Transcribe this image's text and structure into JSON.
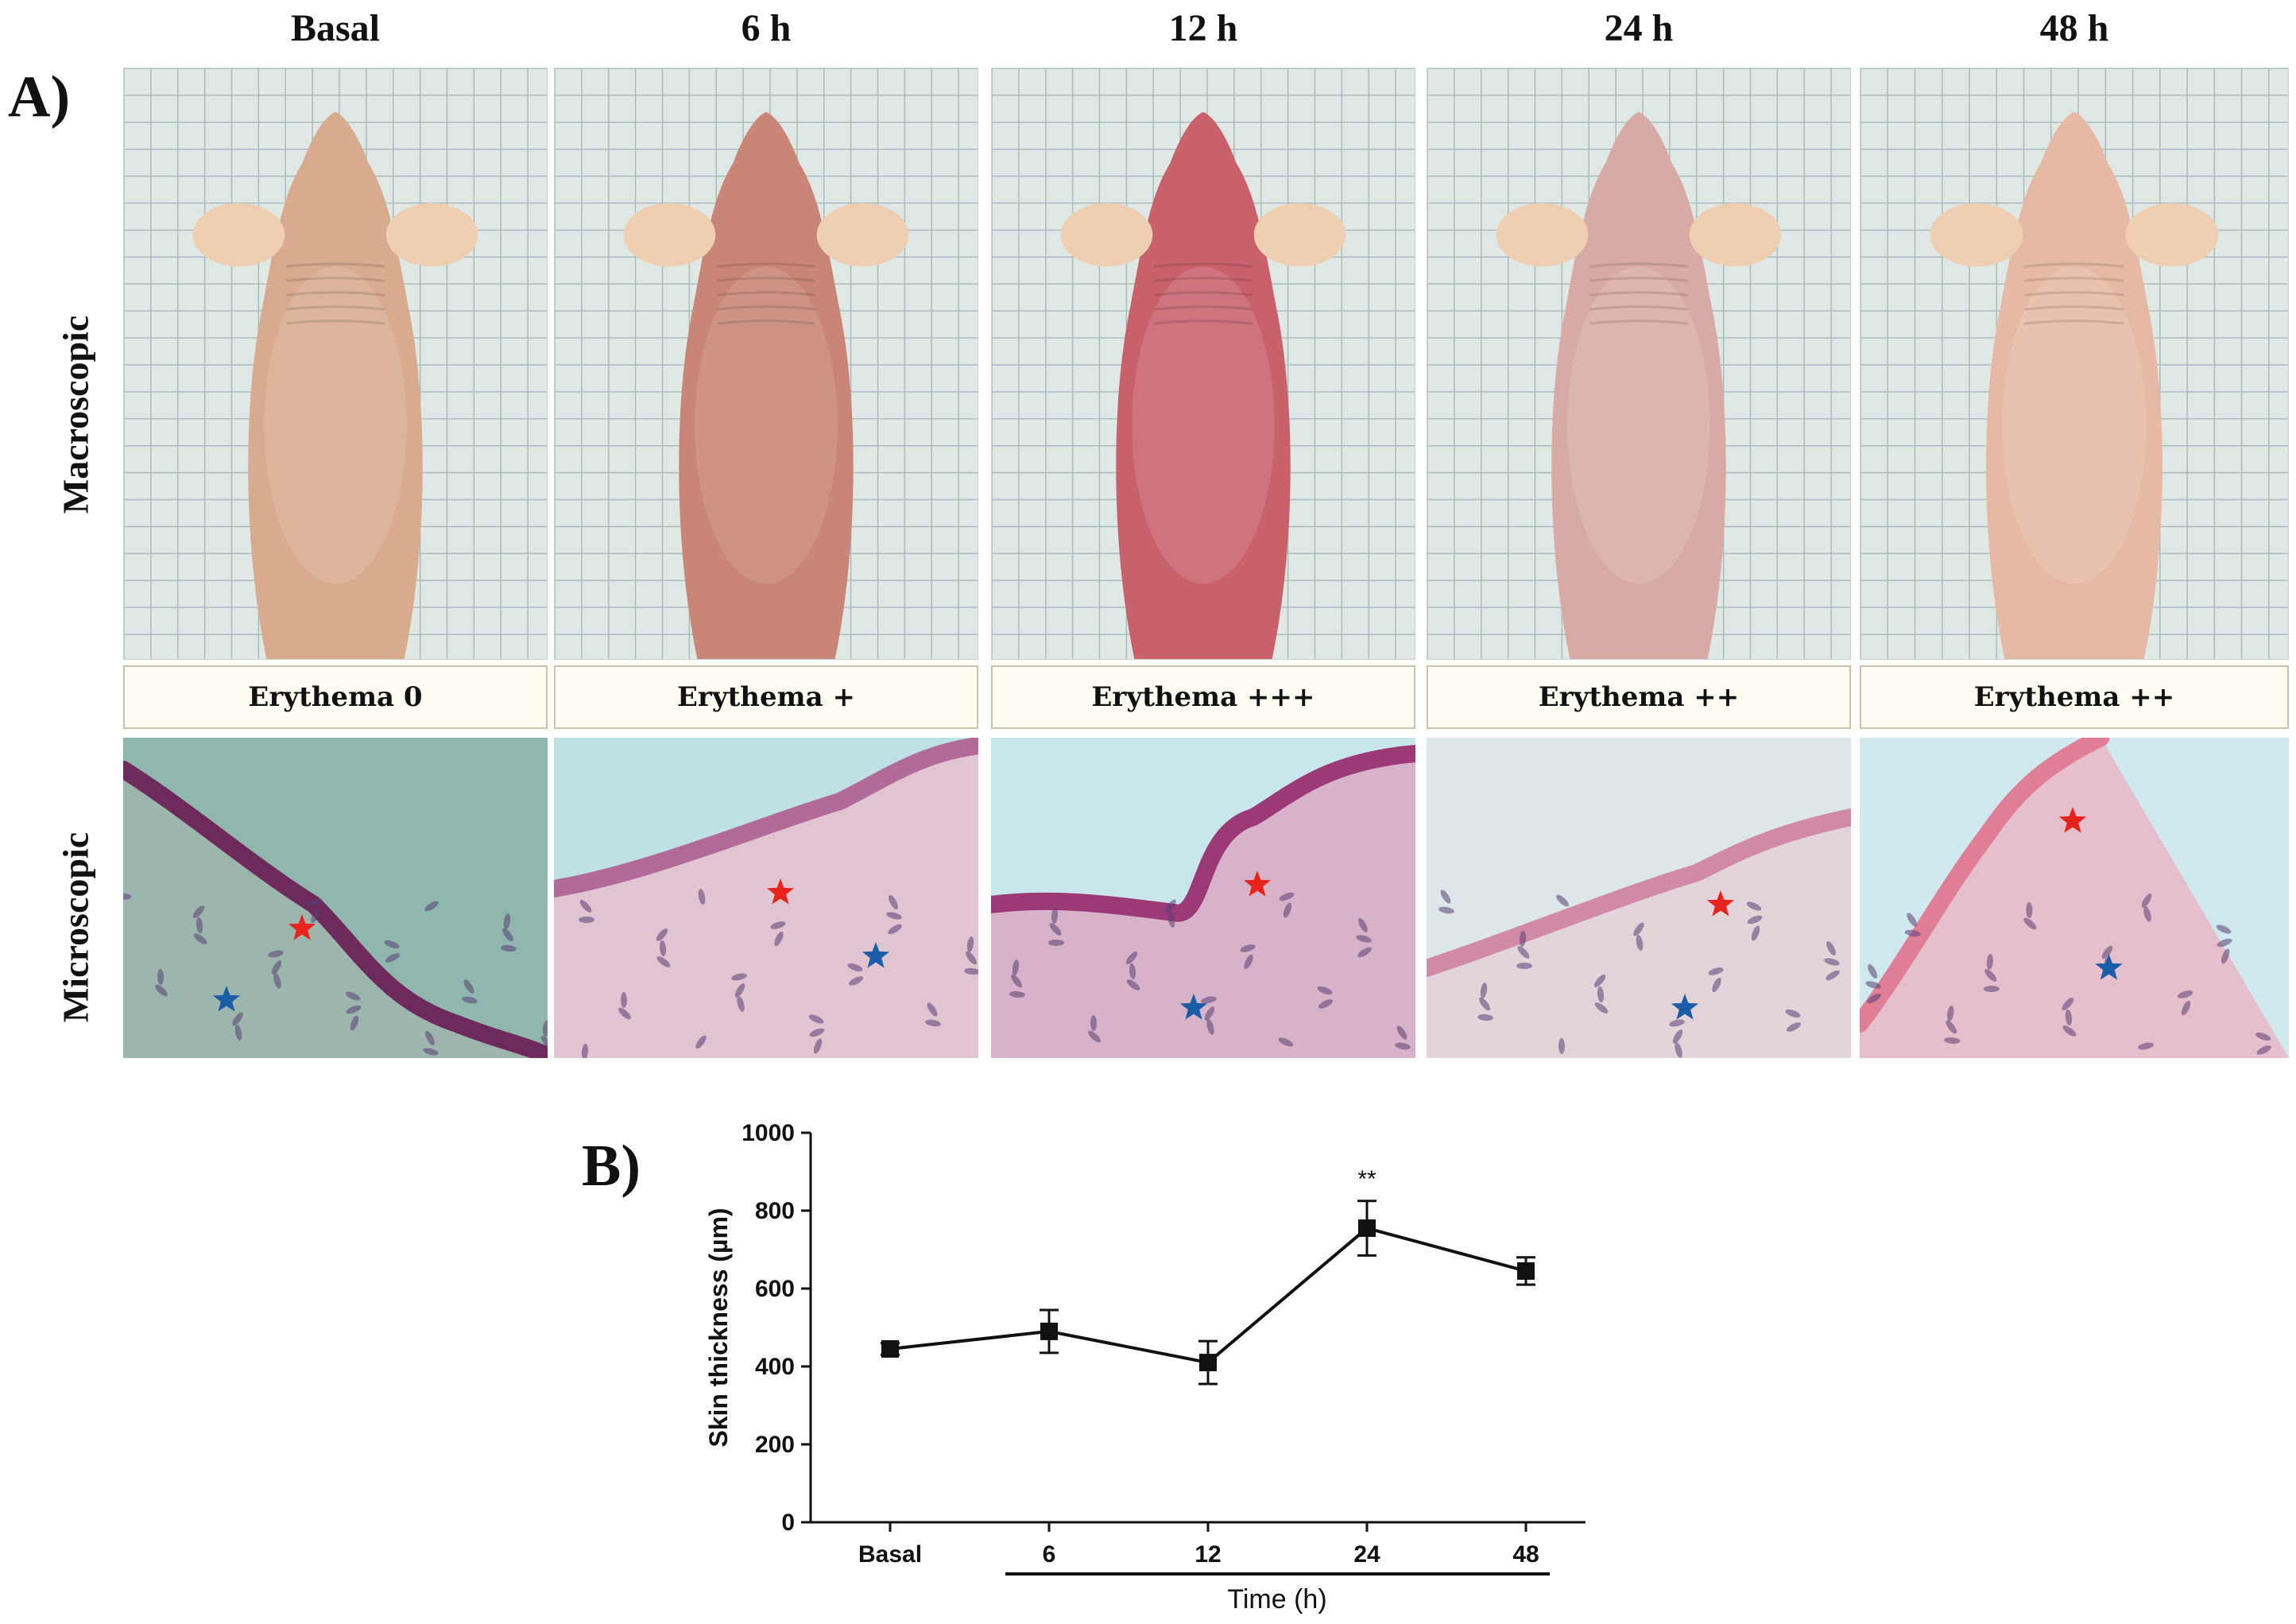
{
  "panel_a": {
    "letter": "A)",
    "row_labels": {
      "macroscopic": "Macroscopic",
      "microscopic": "Microscopic"
    },
    "columns": [
      {
        "header": "Basal",
        "erythema": "Erythema 0",
        "skin_color": "#d8aa8e"
      },
      {
        "header": "6 h",
        "erythema": "Erythema +",
        "skin_color": "#c98576"
      },
      {
        "header": "12 h",
        "erythema": "Erythema +++",
        "skin_color": "#c9616a"
      },
      {
        "header": "24 h",
        "erythema": "Erythema ++",
        "skin_color": "#d8aaa6"
      },
      {
        "header": "48 h",
        "erythema": "Erythema ++",
        "skin_color": "#e6b9a4"
      }
    ]
  },
  "panel_b": {
    "letter": "B)"
  },
  "chart_data": {
    "type": "line",
    "categories": [
      "Basal",
      "6",
      "12",
      "24",
      "48"
    ],
    "values": [
      445,
      490,
      410,
      755,
      645
    ],
    "errors": [
      15,
      55,
      55,
      70,
      35
    ],
    "annotations": [
      {
        "category": "24",
        "text": "**"
      }
    ],
    "ylabel": "Skin thickness (µm)",
    "xlabel": "Time  (h)",
    "ylim": [
      0,
      1000
    ],
    "yticks": [
      0,
      200,
      400,
      600,
      800,
      1000
    ],
    "marker": "square",
    "color": "#111111",
    "grid": false
  }
}
